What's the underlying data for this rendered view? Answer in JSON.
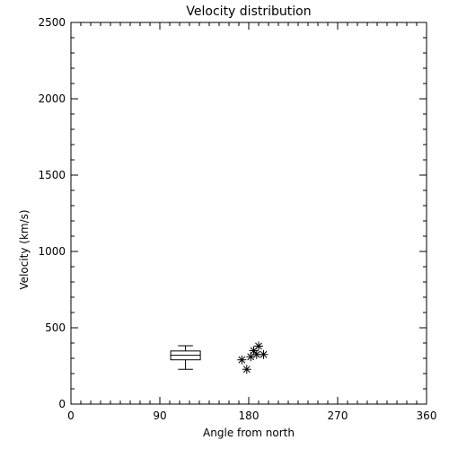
{
  "chart_data": {
    "type": "scatter",
    "title": "Velocity distribution",
    "xlabel": "Angle from north",
    "ylabel": "Velocity (km/s)",
    "xlim": [
      0,
      360
    ],
    "ylim": [
      0,
      2500
    ],
    "xticks": [
      {
        "value": 0,
        "label": "0"
      },
      {
        "value": 90,
        "label": "90"
      },
      {
        "value": 180,
        "label": "180"
      },
      {
        "value": 270,
        "label": "270"
      },
      {
        "value": 360,
        "label": "360"
      }
    ],
    "yticks": [
      {
        "value": 0,
        "label": "0"
      },
      {
        "value": 500,
        "label": "500"
      },
      {
        "value": 1000,
        "label": "1000"
      },
      {
        "value": 1500,
        "label": "1500"
      },
      {
        "value": 2000,
        "label": "2000"
      },
      {
        "value": 2500,
        "label": "2500"
      }
    ],
    "xminor_step": 10,
    "yminor_step": 100,
    "grid": false,
    "boxplot": {
      "x_center": 116,
      "x_width": 30,
      "min": 228,
      "q1": 290,
      "median": 320,
      "q3": 348,
      "max": 382
    },
    "points_marker": "asterisk",
    "points": [
      {
        "x": 173,
        "y": 290
      },
      {
        "x": 178,
        "y": 228
      },
      {
        "x": 182,
        "y": 310
      },
      {
        "x": 185,
        "y": 350
      },
      {
        "x": 188,
        "y": 325
      },
      {
        "x": 190,
        "y": 380
      },
      {
        "x": 195,
        "y": 325
      }
    ]
  }
}
